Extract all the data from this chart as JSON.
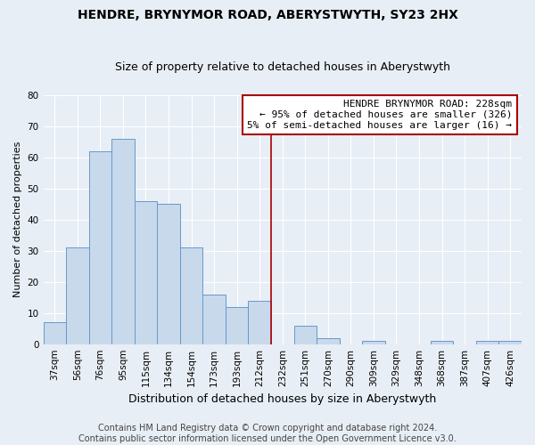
{
  "title": "HENDRE, BRYNYMOR ROAD, ABERYSTWYTH, SY23 2HX",
  "subtitle": "Size of property relative to detached houses in Aberystwyth",
  "xlabel": "Distribution of detached houses by size in Aberystwyth",
  "ylabel": "Number of detached properties",
  "bin_labels": [
    "37sqm",
    "56sqm",
    "76sqm",
    "95sqm",
    "115sqm",
    "134sqm",
    "154sqm",
    "173sqm",
    "193sqm",
    "212sqm",
    "232sqm",
    "251sqm",
    "270sqm",
    "290sqm",
    "309sqm",
    "329sqm",
    "348sqm",
    "368sqm",
    "387sqm",
    "407sqm",
    "426sqm"
  ],
  "bar_heights": [
    7,
    31,
    62,
    66,
    46,
    45,
    31,
    16,
    12,
    14,
    0,
    6,
    2,
    0,
    1,
    0,
    0,
    1,
    0,
    1,
    1
  ],
  "bar_color": "#c8d9ec",
  "bar_edge_color": "#6699cc",
  "vline_color": "#aa0000",
  "vline_x_index": 10,
  "ylim": [
    0,
    80
  ],
  "yticks": [
    0,
    10,
    20,
    30,
    40,
    50,
    60,
    70,
    80
  ],
  "annotation_title": "HENDRE BRYNYMOR ROAD: 228sqm",
  "annotation_line1": "← 95% of detached houses are smaller (326)",
  "annotation_line2": "5% of semi-detached houses are larger (16) →",
  "annotation_box_facecolor": "#ffffff",
  "annotation_box_edgecolor": "#aa0000",
  "footer_line1": "Contains HM Land Registry data © Crown copyright and database right 2024.",
  "footer_line2": "Contains public sector information licensed under the Open Government Licence v3.0.",
  "bg_color": "#e8eef5",
  "grid_color": "#ffffff",
  "title_fontsize": 10,
  "subtitle_fontsize": 9,
  "xlabel_fontsize": 9,
  "ylabel_fontsize": 8,
  "tick_fontsize": 7.5,
  "annotation_fontsize": 8,
  "footer_fontsize": 7
}
